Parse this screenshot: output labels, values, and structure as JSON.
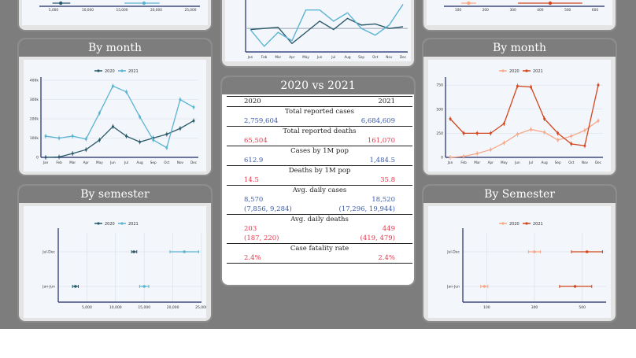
{
  "panels": {
    "left_month_title": "By month",
    "left_semester_title": "By semester",
    "right_month_title": "By month",
    "right_semester_title": "By Semester",
    "table_title": "2020 vs 2021"
  },
  "table": {
    "col_2020": "2020",
    "col_2021": "2021",
    "rows": [
      {
        "label": "Total reported cases",
        "v2020": "2,759,604",
        "v2021": "6,684,609",
        "red": false
      },
      {
        "label": "Total reported deaths",
        "v2020": "65,504",
        "v2021": "161,070",
        "red": true
      },
      {
        "label": "Cases by 1M pop",
        "v2020": "612.9",
        "v2021": "1,484.5",
        "red": false
      },
      {
        "label": "Deaths by 1M pop",
        "v2020": "14.5",
        "v2021": "35.8",
        "red": true
      },
      {
        "label": "Avg. daily cases",
        "v2020": "8,570",
        "v2021": "18,520",
        "sub2020": "(7,856, 9,284)",
        "sub2021": "(17,296, 19,944)",
        "red": false
      },
      {
        "label": "Avg. daily deaths",
        "v2020": "203",
        "v2021": "449",
        "sub2020": "(187, 220)",
        "sub2021": "(419, 479)",
        "red": true
      },
      {
        "label": "Case fatality rate",
        "v2020": "2.4%",
        "v2021": "2.4%",
        "red": true
      }
    ]
  },
  "colors": {
    "dark_teal": "#2a5a6a",
    "light_blue": "#5bb4d2",
    "light_orange": "#f7a889",
    "dark_orange": "#d2461e",
    "red_text": "#e2384c",
    "blue_text": "#3a5aa8"
  },
  "months": [
    "Jan",
    "Feb",
    "Mar",
    "Apr",
    "May",
    "Jun",
    "Jul",
    "Aug",
    "Sep",
    "Oct",
    "Nov",
    "Dec"
  ],
  "chart_data": [
    {
      "id": "cases_by_month",
      "type": "line",
      "title": "By month",
      "categories": [
        "Jan",
        "Feb",
        "Mar",
        "Apr",
        "May",
        "Jun",
        "Jul",
        "Aug",
        "Sep",
        "Oct",
        "Nov",
        "Dec"
      ],
      "ylim": [
        0,
        400000
      ],
      "yticks": [
        0,
        100000,
        200000,
        300000,
        400000
      ],
      "ytick_labels": [
        "0",
        "100k",
        "200k",
        "300k",
        "400k"
      ],
      "legend_position": "top-center",
      "series": [
        {
          "name": "2020",
          "values": [
            0,
            2000,
            20000,
            40000,
            90000,
            160000,
            110000,
            80000,
            100000,
            120000,
            150000,
            190000
          ]
        },
        {
          "name": "2021",
          "values": [
            110000,
            100000,
            110000,
            95000,
            230000,
            370000,
            340000,
            210000,
            90000,
            50000,
            300000,
            260000
          ]
        }
      ]
    },
    {
      "id": "cases_by_semester",
      "type": "scatter",
      "title": "By semester",
      "categories": [
        "Jan-Jun",
        "Jul-Dec"
      ],
      "xlim": [
        0,
        25000
      ],
      "xticks": [
        5000,
        10000,
        15000,
        20000,
        25000
      ],
      "xtick_labels": [
        "5,000",
        "10,000",
        "15,000",
        "20,000",
        "25,000"
      ],
      "legend_position": "top-center",
      "series": [
        {
          "name": "2020",
          "values": [
            {
              "y": "Jan-Jun",
              "x": 3000,
              "lo": 2500,
              "hi": 3500
            },
            {
              "y": "Jul-Dec",
              "x": 13200,
              "lo": 12800,
              "hi": 13700
            }
          ]
        },
        {
          "name": "2021",
          "values": [
            {
              "y": "Jan-Jun",
              "x": 15000,
              "lo": 14200,
              "hi": 15800
            },
            {
              "y": "Jul-Dec",
              "x": 22000,
              "lo": 19500,
              "hi": 24500
            }
          ]
        }
      ]
    },
    {
      "id": "deaths_by_month",
      "type": "line",
      "title": "By month",
      "categories": [
        "Jan",
        "Feb",
        "Mar",
        "Apr",
        "May",
        "Jun",
        "Jul",
        "Aug",
        "Sep",
        "Oct",
        "Nov",
        "Dec"
      ],
      "ylim": [
        0,
        800
      ],
      "yticks": [
        0,
        250,
        500,
        750
      ],
      "ytick_labels": [
        "0",
        "250",
        "500",
        "750"
      ],
      "legend_position": "top-center",
      "series": [
        {
          "name": "2020",
          "values": [
            0,
            10,
            40,
            80,
            150,
            240,
            290,
            260,
            180,
            220,
            280,
            380
          ]
        },
        {
          "name": "2021",
          "values": [
            400,
            250,
            250,
            250,
            350,
            740,
            730,
            400,
            250,
            140,
            120,
            750
          ]
        }
      ]
    },
    {
      "id": "deaths_by_semester",
      "type": "scatter",
      "title": "By Semester",
      "categories": [
        "Jan-Jun",
        "Jul-Dec"
      ],
      "xlim": [
        0,
        600
      ],
      "xticks": [
        100,
        300,
        500
      ],
      "xtick_labels": [
        "100",
        "300",
        "500"
      ],
      "legend_position": "top-center",
      "series": [
        {
          "name": "2020",
          "values": [
            {
              "y": "Jan-Jun",
              "x": 90,
              "lo": 75,
              "hi": 105
            },
            {
              "y": "Jul-Dec",
              "x": 300,
              "lo": 275,
              "hi": 325
            }
          ]
        },
        {
          "name": "2021",
          "values": [
            {
              "y": "Jan-Jun",
              "x": 470,
              "lo": 405,
              "hi": 540
            },
            {
              "y": "Jul-Dec",
              "x": 520,
              "lo": 455,
              "hi": 585
            }
          ]
        }
      ]
    },
    {
      "id": "top_left_partial",
      "type": "scatter",
      "xtick_labels": [
        "5,000",
        "10,000",
        "15,000",
        "20,000",
        "25,000"
      ],
      "series": [
        {
          "name": "2020",
          "values": [
            {
              "x": 3600,
              "lo": 2200,
              "hi": 5200
            }
          ]
        },
        {
          "name": "2021",
          "values": [
            {
              "x": 17600,
              "lo": 14300,
              "hi": 20200
            }
          ]
        }
      ]
    },
    {
      "id": "top_center_partial",
      "type": "line",
      "categories": [
        "Jan",
        "Feb",
        "Mar",
        "Apr",
        "May",
        "Jun",
        "Jul",
        "Aug",
        "Sep",
        "Oct",
        "Nov",
        "Dec"
      ],
      "series": [
        {
          "name": "2020",
          "values": [
            40,
            42,
            44,
            15,
            35,
            55,
            40,
            60,
            48,
            50,
            42,
            45
          ]
        },
        {
          "name": "2021",
          "values": [
            40,
            10,
            35,
            20,
            75,
            75,
            55,
            70,
            42,
            30,
            48,
            85
          ]
        }
      ]
    },
    {
      "id": "top_right_partial",
      "type": "scatter",
      "xtick_labels": [
        "100",
        "200",
        "300",
        "400",
        "500",
        "600"
      ],
      "series": [
        {
          "name": "2020",
          "values": [
            {
              "x": 100,
              "lo": 70,
              "hi": 130
            }
          ]
        },
        {
          "name": "2021",
          "values": [
            {
              "x": 430,
              "lo": 300,
              "hi": 560
            }
          ]
        }
      ]
    }
  ]
}
